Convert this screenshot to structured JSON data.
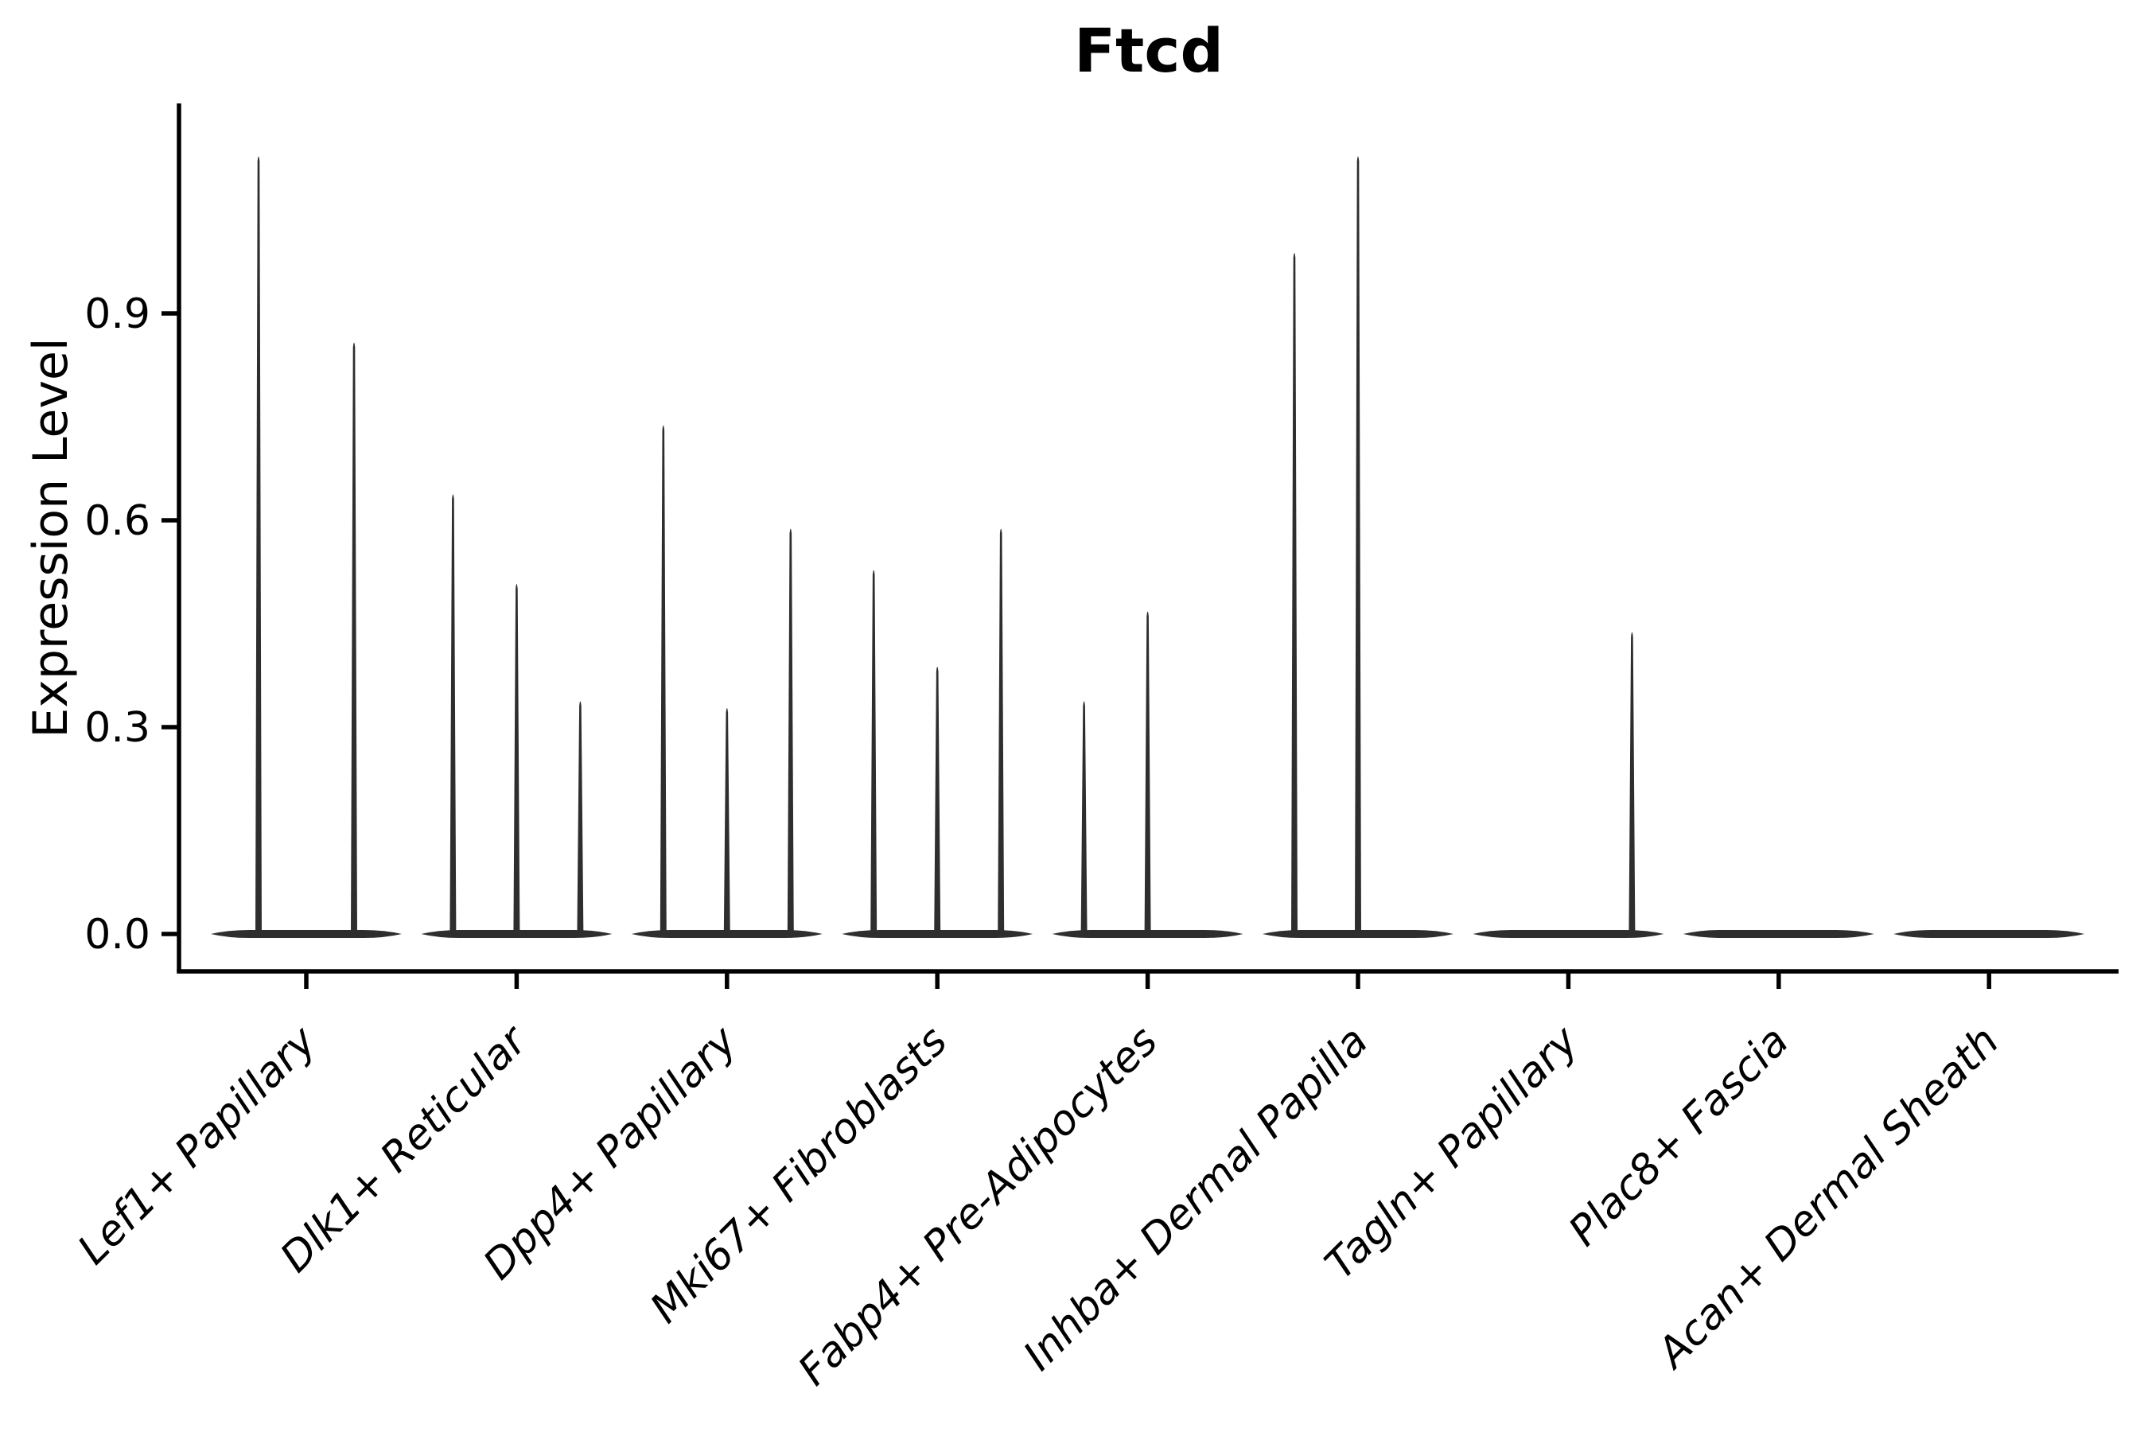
{
  "chart_data": {
    "type": "violin",
    "title": "Ftcd",
    "ylabel": "Expression Level",
    "xlabel": "",
    "grid": false,
    "legend": "none",
    "background": "#ffffff",
    "axis_color": "#000000",
    "violin_color": "#2e2e2e",
    "ylim": [
      -0.05,
      1.2
    ],
    "yticks": [
      0.0,
      0.3,
      0.6,
      0.9
    ],
    "ytick_labels": [
      "0.0",
      "0.3",
      "0.6",
      "0.9"
    ],
    "categories": [
      "Lef1+ Papillary",
      "Dlk1+ Reticular",
      "Dpp4+ Papillary",
      "Mki67+ Fibroblasts",
      "Fabp4+ Pre-Adipocytes",
      "Inhba+ Dermal Papilla",
      "Tagln+ Papillary",
      "Plac8+ Fascia",
      "Acan+ Dermal Sheath"
    ],
    "series": [
      {
        "category": "Lef1+ Papillary",
        "violin_maxima": [
          1.13,
          0.86
        ]
      },
      {
        "category": "Dlk1+ Reticular",
        "violin_maxima": [
          0.64,
          0.51,
          0.34
        ]
      },
      {
        "category": "Dpp4+ Papillary",
        "violin_maxima": [
          0.74,
          0.33,
          0.59
        ]
      },
      {
        "category": "Mki67+ Fibroblasts",
        "violin_maxima": [
          0.53,
          0.39,
          0.59
        ]
      },
      {
        "category": "Fabp4+ Pre-Adipocytes",
        "violin_maxima": [
          0.34,
          0.47,
          0
        ]
      },
      {
        "category": "Inhba+ Dermal Papilla",
        "violin_maxima": [
          0.99,
          1.13,
          0
        ]
      },
      {
        "category": "Tagln+ Papillary",
        "violin_maxima": [
          0,
          0,
          0.44
        ]
      },
      {
        "category": "Plac8+ Fascia",
        "violin_maxima": [
          0,
          0,
          0
        ]
      },
      {
        "category": "Acan+ Dermal Sheath",
        "violin_maxima": [
          0,
          0,
          0
        ]
      }
    ]
  }
}
